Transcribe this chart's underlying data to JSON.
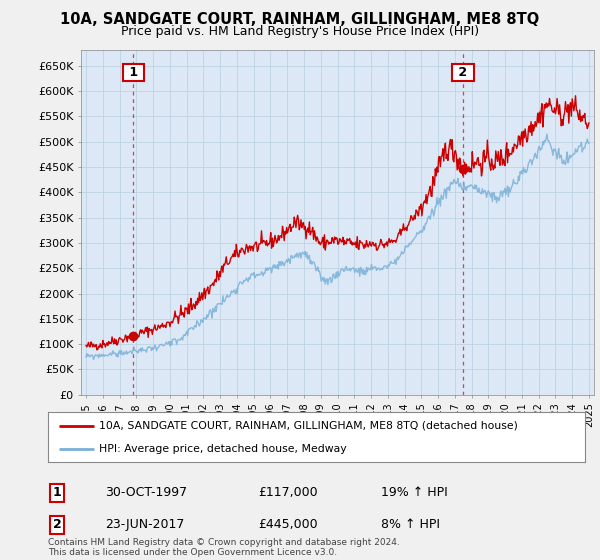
{
  "title": "10A, SANDGATE COURT, RAINHAM, GILLINGHAM, ME8 8TQ",
  "subtitle": "Price paid vs. HM Land Registry's House Price Index (HPI)",
  "ylim": [
    0,
    680000
  ],
  "yticks": [
    0,
    50000,
    100000,
    150000,
    200000,
    250000,
    300000,
    350000,
    400000,
    450000,
    500000,
    550000,
    600000,
    650000
  ],
  "ytick_labels": [
    "£0",
    "£50K",
    "£100K",
    "£150K",
    "£200K",
    "£250K",
    "£300K",
    "£350K",
    "£400K",
    "£450K",
    "£500K",
    "£550K",
    "£600K",
    "£650K"
  ],
  "bg_color": "#f0f0f0",
  "plot_bg": "#dce8f5",
  "grid_color": "#b8cfe0",
  "red_color": "#cc0000",
  "blue_color": "#7ab0d8",
  "marker1_x": 1997.83,
  "marker1_y": 117000,
  "marker2_x": 2017.48,
  "marker2_y": 445000,
  "legend_line1": "10A, SANDGATE COURT, RAINHAM, GILLINGHAM, ME8 8TQ (detached house)",
  "legend_line2": "HPI: Average price, detached house, Medway",
  "ann1_date": "30-OCT-1997",
  "ann1_price": "£117,000",
  "ann1_hpi": "19% ↑ HPI",
  "ann2_date": "23-JUN-2017",
  "ann2_price": "£445,000",
  "ann2_hpi": "8% ↑ HPI",
  "footer": "Contains HM Land Registry data © Crown copyright and database right 2024.\nThis data is licensed under the Open Government Licence v3.0.",
  "xmin": 1995,
  "xmax": 2025
}
